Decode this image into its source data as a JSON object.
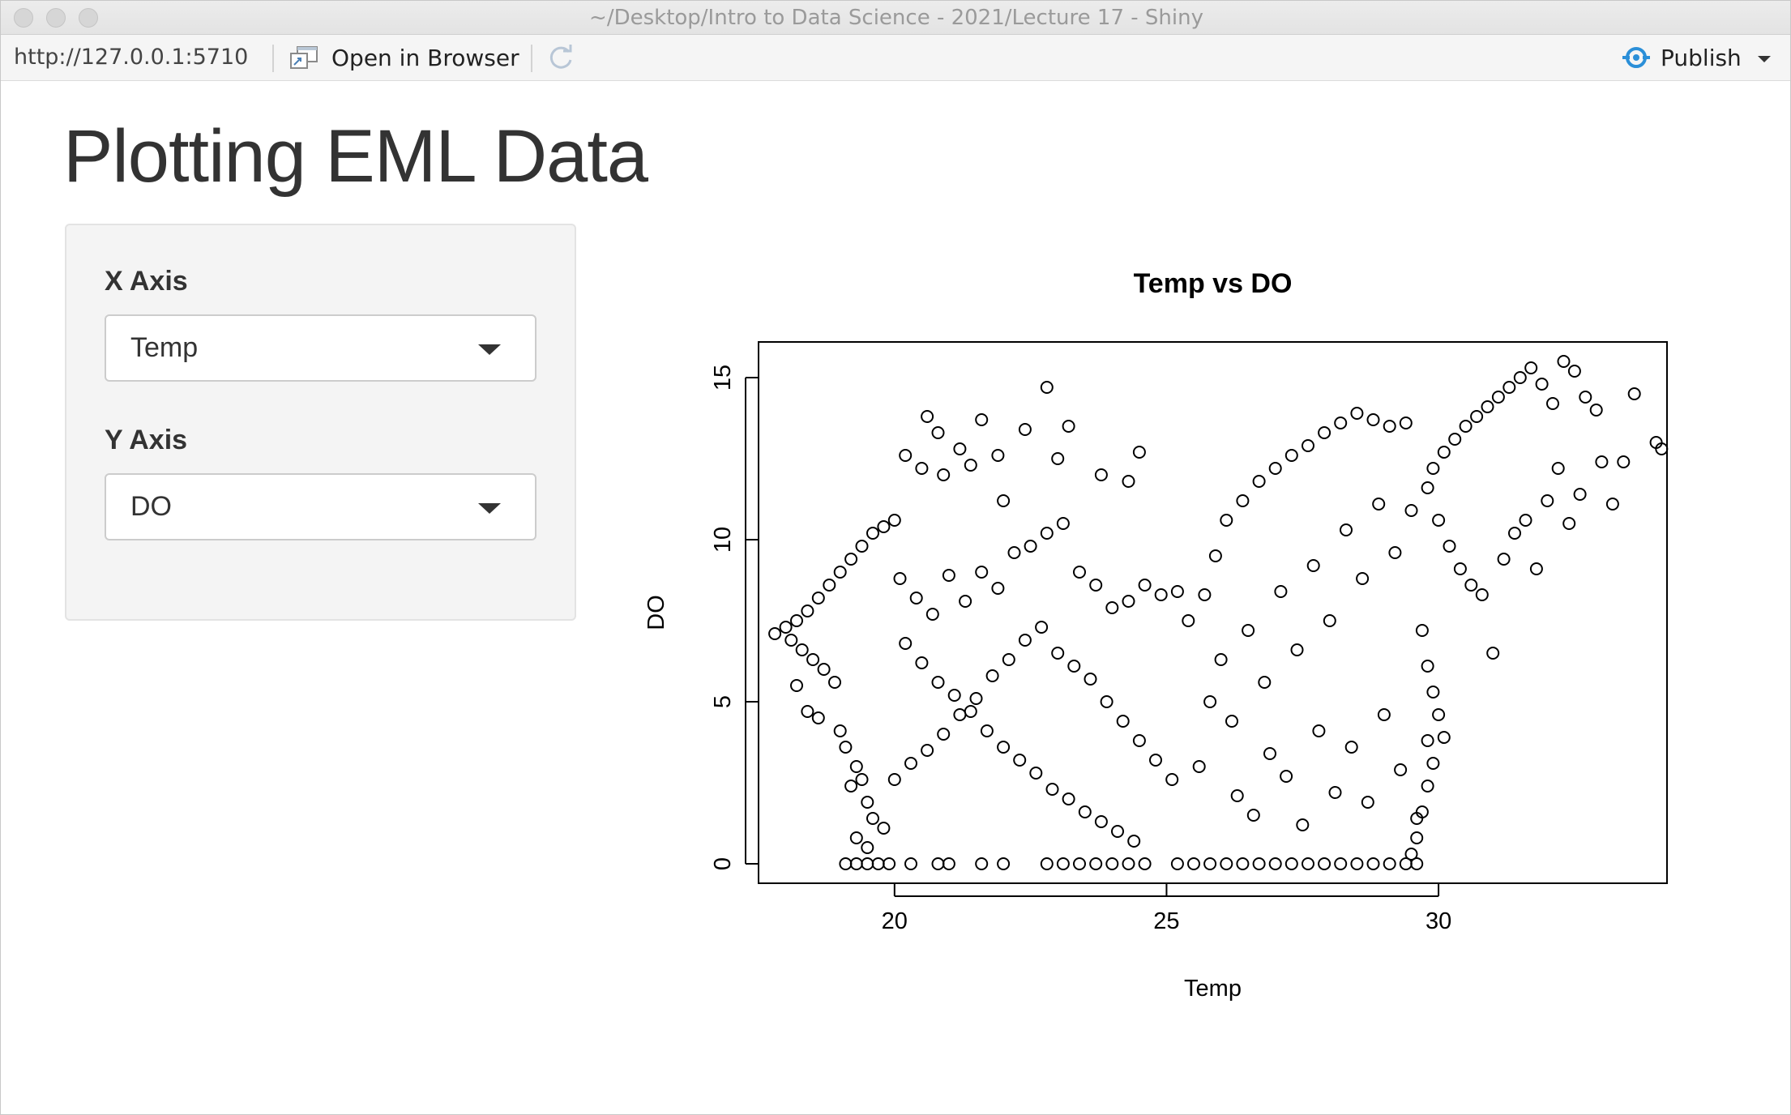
{
  "window": {
    "title": "~/Desktop/Intro to Data Science - 2021/Lecture 17 - Shiny"
  },
  "toolbar": {
    "url": "http://127.0.0.1:5710",
    "open_browser_label": "Open in Browser",
    "publish_label": "Publish"
  },
  "page": {
    "title": "Plotting EML Data"
  },
  "controls": {
    "x_label": "X Axis",
    "x_value": "Temp",
    "y_label": "Y Axis",
    "y_value": "DO"
  },
  "colors": {
    "publish_icon": "#2b8fd8",
    "plot_points": "#000000",
    "panel_bg": "#f4f4f4"
  },
  "chart_data": {
    "type": "scatter",
    "title": "Temp vs DO",
    "xlabel": "Temp",
    "ylabel": "DO",
    "xlim": [
      17.5,
      34.2
    ],
    "ylim": [
      -0.6,
      16.1
    ],
    "xticks": [
      20,
      25,
      30
    ],
    "yticks": [
      0,
      5,
      10,
      15
    ],
    "marker": "open-circle",
    "points": [
      [
        17.8,
        7.1
      ],
      [
        18.0,
        7.3
      ],
      [
        18.2,
        7.5
      ],
      [
        18.4,
        7.8
      ],
      [
        18.6,
        8.2
      ],
      [
        18.8,
        8.6
      ],
      [
        19.0,
        9.0
      ],
      [
        19.2,
        9.4
      ],
      [
        19.4,
        9.8
      ],
      [
        19.6,
        10.2
      ],
      [
        19.8,
        10.4
      ],
      [
        20.0,
        10.6
      ],
      [
        18.1,
        6.9
      ],
      [
        18.3,
        6.6
      ],
      [
        18.5,
        6.3
      ],
      [
        18.7,
        6.0
      ],
      [
        18.9,
        5.6
      ],
      [
        18.2,
        5.5
      ],
      [
        18.4,
        4.7
      ],
      [
        18.6,
        4.5
      ],
      [
        19.0,
        4.1
      ],
      [
        19.1,
        3.6
      ],
      [
        19.3,
        3.0
      ],
      [
        19.4,
        2.6
      ],
      [
        19.2,
        2.4
      ],
      [
        19.5,
        1.9
      ],
      [
        19.6,
        1.4
      ],
      [
        19.8,
        1.1
      ],
      [
        19.3,
        0.8
      ],
      [
        19.5,
        0.5
      ],
      [
        19.1,
        0.0
      ],
      [
        19.3,
        0.0
      ],
      [
        19.5,
        0.0
      ],
      [
        19.7,
        0.0
      ],
      [
        19.9,
        0.0
      ],
      [
        20.3,
        0.0
      ],
      [
        20.8,
        0.0
      ],
      [
        21.0,
        0.0
      ],
      [
        21.6,
        0.0
      ],
      [
        22.0,
        0.0
      ],
      [
        22.8,
        0.0
      ],
      [
        23.1,
        0.0
      ],
      [
        23.4,
        0.0
      ],
      [
        23.7,
        0.0
      ],
      [
        24.0,
        0.0
      ],
      [
        24.3,
        0.0
      ],
      [
        24.6,
        0.0
      ],
      [
        25.2,
        0.0
      ],
      [
        25.5,
        0.0
      ],
      [
        25.8,
        0.0
      ],
      [
        26.1,
        0.0
      ],
      [
        26.4,
        0.0
      ],
      [
        26.7,
        0.0
      ],
      [
        27.0,
        0.0
      ],
      [
        27.3,
        0.0
      ],
      [
        27.6,
        0.0
      ],
      [
        27.9,
        0.0
      ],
      [
        28.2,
        0.0
      ],
      [
        28.5,
        0.0
      ],
      [
        28.8,
        0.0
      ],
      [
        29.1,
        0.0
      ],
      [
        29.4,
        0.0
      ],
      [
        29.6,
        0.0
      ],
      [
        20.2,
        12.6
      ],
      [
        20.5,
        12.2
      ],
      [
        20.8,
        13.3
      ],
      [
        20.6,
        13.8
      ],
      [
        21.2,
        12.8
      ],
      [
        21.6,
        13.7
      ],
      [
        21.9,
        12.6
      ],
      [
        22.4,
        13.4
      ],
      [
        22.8,
        14.7
      ],
      [
        23.2,
        13.5
      ],
      [
        23.0,
        12.5
      ],
      [
        23.8,
        12.0
      ],
      [
        24.3,
        11.8
      ],
      [
        24.5,
        12.7
      ],
      [
        22.0,
        11.2
      ],
      [
        21.4,
        12.3
      ],
      [
        20.9,
        12.0
      ],
      [
        20.1,
        8.8
      ],
      [
        20.4,
        8.2
      ],
      [
        20.7,
        7.7
      ],
      [
        21.0,
        8.9
      ],
      [
        21.3,
        8.1
      ],
      [
        21.6,
        9.0
      ],
      [
        21.9,
        8.5
      ],
      [
        22.2,
        9.6
      ],
      [
        22.5,
        9.8
      ],
      [
        22.8,
        10.2
      ],
      [
        23.1,
        10.5
      ],
      [
        23.4,
        9.0
      ],
      [
        23.7,
        8.6
      ],
      [
        24.0,
        7.9
      ],
      [
        24.3,
        8.1
      ],
      [
        24.6,
        8.6
      ],
      [
        24.9,
        8.3
      ],
      [
        25.2,
        8.4
      ],
      [
        20.2,
        6.8
      ],
      [
        20.5,
        6.2
      ],
      [
        20.8,
        5.6
      ],
      [
        21.1,
        5.2
      ],
      [
        21.4,
        4.7
      ],
      [
        21.7,
        4.1
      ],
      [
        22.0,
        3.6
      ],
      [
        22.3,
        3.2
      ],
      [
        22.6,
        2.8
      ],
      [
        22.9,
        2.3
      ],
      [
        23.2,
        2.0
      ],
      [
        23.5,
        1.6
      ],
      [
        23.8,
        1.3
      ],
      [
        24.1,
        1.0
      ],
      [
        24.4,
        0.7
      ],
      [
        20.0,
        2.6
      ],
      [
        20.3,
        3.1
      ],
      [
        20.6,
        3.5
      ],
      [
        20.9,
        4.0
      ],
      [
        21.2,
        4.6
      ],
      [
        21.5,
        5.1
      ],
      [
        21.8,
        5.8
      ],
      [
        22.1,
        6.3
      ],
      [
        22.4,
        6.9
      ],
      [
        22.7,
        7.3
      ],
      [
        23.0,
        6.5
      ],
      [
        23.3,
        6.1
      ],
      [
        23.6,
        5.7
      ],
      [
        23.9,
        5.0
      ],
      [
        24.2,
        4.4
      ],
      [
        24.5,
        3.8
      ],
      [
        24.8,
        3.2
      ],
      [
        25.1,
        2.6
      ],
      [
        25.4,
        7.5
      ],
      [
        25.7,
        8.3
      ],
      [
        25.9,
        9.5
      ],
      [
        26.1,
        10.6
      ],
      [
        26.4,
        11.2
      ],
      [
        26.7,
        11.8
      ],
      [
        27.0,
        12.2
      ],
      [
        27.3,
        12.6
      ],
      [
        27.6,
        12.9
      ],
      [
        27.9,
        13.3
      ],
      [
        28.2,
        13.6
      ],
      [
        28.5,
        13.9
      ],
      [
        28.8,
        13.7
      ],
      [
        29.1,
        13.5
      ],
      [
        29.4,
        13.6
      ],
      [
        25.6,
        3.0
      ],
      [
        25.8,
        5.0
      ],
      [
        26.0,
        6.3
      ],
      [
        26.2,
        4.4
      ],
      [
        26.5,
        7.2
      ],
      [
        26.8,
        5.6
      ],
      [
        27.1,
        8.4
      ],
      [
        27.4,
        6.6
      ],
      [
        27.7,
        9.2
      ],
      [
        28.0,
        7.5
      ],
      [
        28.3,
        10.3
      ],
      [
        28.6,
        8.8
      ],
      [
        28.9,
        11.1
      ],
      [
        29.2,
        9.6
      ],
      [
        29.5,
        10.9
      ],
      [
        29.8,
        11.6
      ],
      [
        26.3,
        2.1
      ],
      [
        26.6,
        1.5
      ],
      [
        26.9,
        3.4
      ],
      [
        27.2,
        2.7
      ],
      [
        27.5,
        1.2
      ],
      [
        27.8,
        4.1
      ],
      [
        28.1,
        2.2
      ],
      [
        28.4,
        3.6
      ],
      [
        28.7,
        1.9
      ],
      [
        29.0,
        4.6
      ],
      [
        29.3,
        2.9
      ],
      [
        29.6,
        1.4
      ],
      [
        29.8,
        3.8
      ],
      [
        29.9,
        12.2
      ],
      [
        30.1,
        12.7
      ],
      [
        30.3,
        13.1
      ],
      [
        30.5,
        13.5
      ],
      [
        30.7,
        13.8
      ],
      [
        30.9,
        14.1
      ],
      [
        31.1,
        14.4
      ],
      [
        31.3,
        14.7
      ],
      [
        31.5,
        15.0
      ],
      [
        31.7,
        15.3
      ],
      [
        31.9,
        14.8
      ],
      [
        32.1,
        14.2
      ],
      [
        32.3,
        15.5
      ],
      [
        32.5,
        15.2
      ],
      [
        32.7,
        14.4
      ],
      [
        32.9,
        14.0
      ],
      [
        30.0,
        10.6
      ],
      [
        30.2,
        9.8
      ],
      [
        30.4,
        9.1
      ],
      [
        30.6,
        8.6
      ],
      [
        30.8,
        8.3
      ],
      [
        31.0,
        6.5
      ],
      [
        31.2,
        9.4
      ],
      [
        31.4,
        10.2
      ],
      [
        31.6,
        10.6
      ],
      [
        31.8,
        9.1
      ],
      [
        32.0,
        11.2
      ],
      [
        32.2,
        12.2
      ],
      [
        32.4,
        10.5
      ],
      [
        32.6,
        11.4
      ],
      [
        33.0,
        12.4
      ],
      [
        33.2,
        11.1
      ],
      [
        33.4,
        12.4
      ],
      [
        33.6,
        14.5
      ],
      [
        34.0,
        13.0
      ],
      [
        34.1,
        12.8
      ],
      [
        29.7,
        7.2
      ],
      [
        29.8,
        6.1
      ],
      [
        29.9,
        5.3
      ],
      [
        30.0,
        4.6
      ],
      [
        30.1,
        3.9
      ],
      [
        29.9,
        3.1
      ],
      [
        29.8,
        2.4
      ],
      [
        29.7,
        1.6
      ],
      [
        29.6,
        0.8
      ],
      [
        29.5,
        0.3
      ]
    ]
  }
}
